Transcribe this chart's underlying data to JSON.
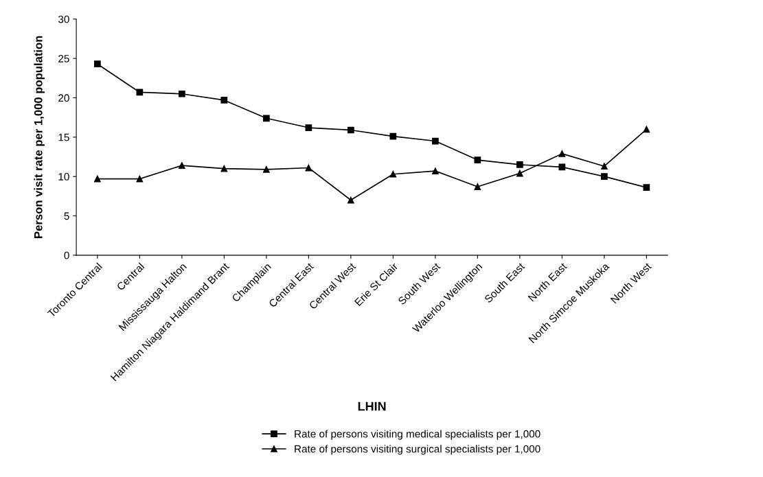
{
  "chart_data": {
    "type": "line",
    "xlabel": "LHIN",
    "ylabel": "Person visit rate per 1,000 population",
    "categories": [
      "Toronto Central",
      "Central",
      "Mississauga Halton",
      "Hamilton Niagara Haldimand Brant",
      "Champlain",
      "Central East",
      "Central West",
      "Erie St Clair",
      "South West",
      "Waterloo Wellington",
      "South East",
      "North East",
      "North Simcoe Muskoka",
      "North West"
    ],
    "series": [
      {
        "name": "Rate of persons visiting medical specialists per 1,000",
        "color": "#000000",
        "marker": "square",
        "values": [
          24.3,
          20.7,
          20.5,
          19.7,
          17.4,
          16.2,
          15.9,
          15.1,
          14.5,
          12.1,
          11.5,
          11.2,
          10.0,
          8.6
        ]
      },
      {
        "name": "Rate of persons visiting surgical specialists per 1,000",
        "color": "#000000",
        "marker": "triangle",
        "values": [
          9.7,
          9.7,
          11.4,
          11.0,
          10.9,
          11.1,
          7.0,
          10.3,
          10.7,
          8.7,
          10.4,
          12.9,
          11.3,
          16.0
        ]
      }
    ],
    "ylim": [
      0,
      30
    ],
    "yticks": [
      0,
      5,
      10,
      15,
      20,
      25,
      30
    ],
    "grid": false,
    "legend": "bottom",
    "line_style": "solid"
  }
}
